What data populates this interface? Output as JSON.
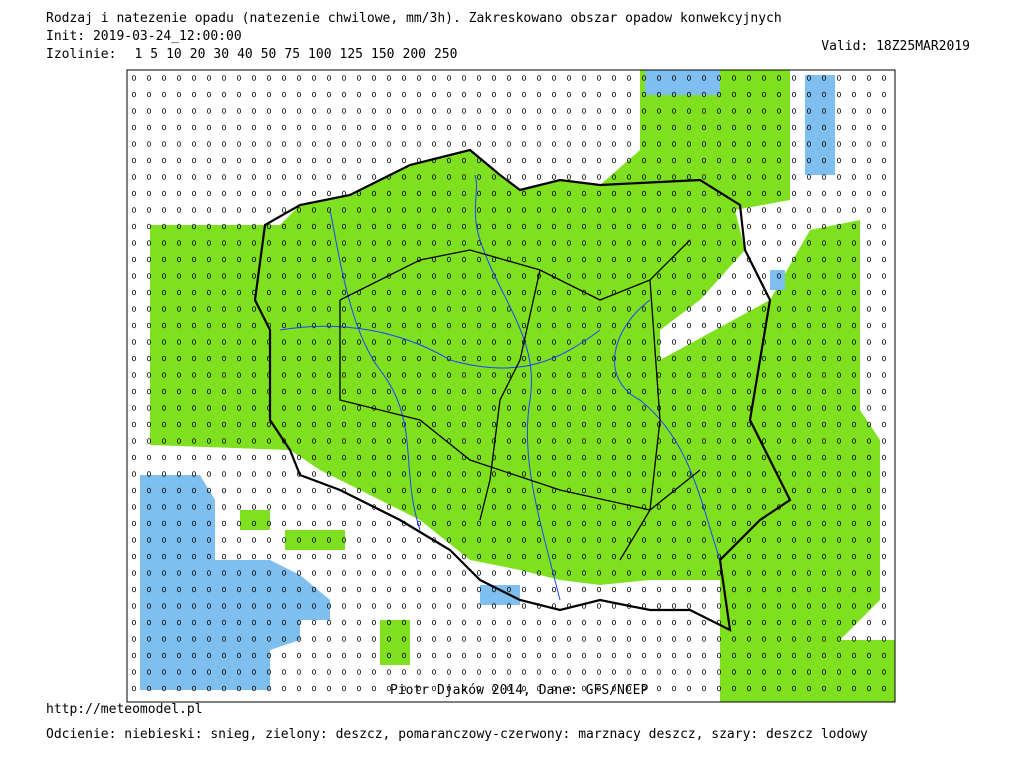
{
  "header": {
    "title": "Rodzaj i natezenie opadu (natezenie chwilowe, mm/3h). Zakreskowano obszar opadow konwekcyjnych",
    "init": "Init: 2019-03-24_12:00:00",
    "isolines_label": "Izolinie:",
    "isolines": [
      1,
      5,
      10,
      20,
      30,
      40,
      50,
      75,
      100,
      125,
      150,
      200,
      250
    ],
    "valid": "Valid: 18Z25MAR2019"
  },
  "map": {
    "credit": "Piotr Djaków 2014, Dane: GFS/NCEP"
  },
  "footer": {
    "url": "http://meteomodel.pl",
    "legend": "Odcienie: niebieski: snieg, zielony: deszcz, pomaranczowy-czerwony: marznacy deszcz, szary: deszcz lodowy"
  }
}
